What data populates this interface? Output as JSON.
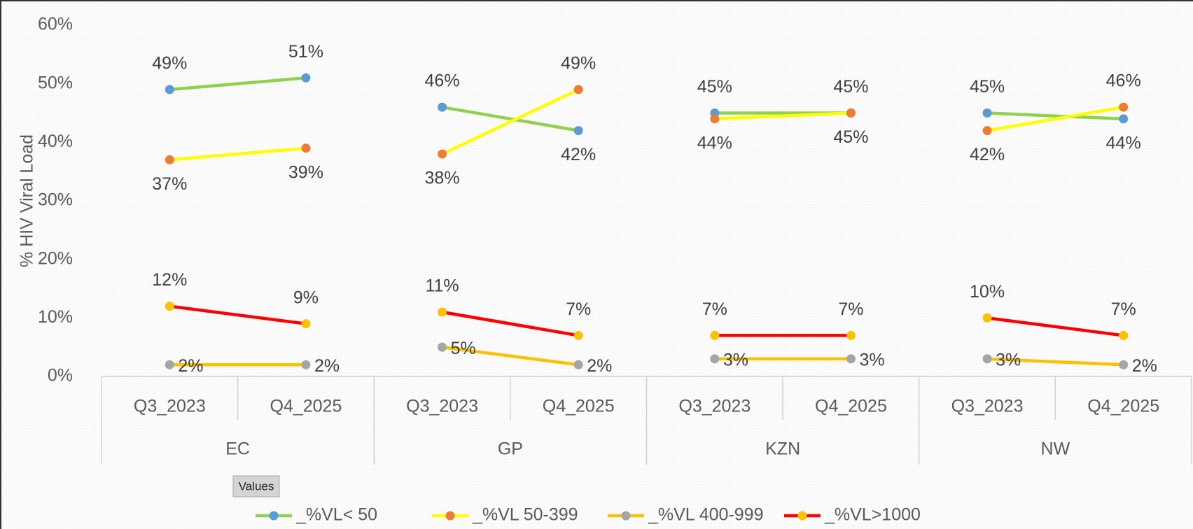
{
  "chart_data": {
    "type": "line",
    "ylabel": "% HIV Viral Load",
    "categories": [
      "Q3_2023",
      "Q4_2025",
      "Q3_2023",
      "Q4_2025",
      "Q3_2023",
      "Q4_2025",
      "Q3_2023",
      "Q4_2025"
    ],
    "groups": [
      "EC",
      "GP",
      "KZN",
      "NW"
    ],
    "field_button": "Values",
    "ylim": [
      0,
      60
    ],
    "yticks": [
      {
        "value": 0,
        "label": "0%"
      },
      {
        "value": 10,
        "label": "10%"
      },
      {
        "value": 20,
        "label": "20%"
      },
      {
        "value": 30,
        "label": "30%"
      },
      {
        "value": 40,
        "label": "40%"
      },
      {
        "value": 50,
        "label": "50%"
      },
      {
        "value": 60,
        "label": "60%"
      }
    ],
    "legend": "bottom",
    "series": [
      {
        "name": "_%VL< 50",
        "color": "#92d050",
        "marker_color": "#5b9bd5",
        "values": [
          49,
          51,
          46,
          42,
          45,
          45,
          45,
          44
        ],
        "value_labels": [
          "49%",
          "51%",
          "46%",
          "42%",
          "45%",
          "45%",
          "45%",
          "44%"
        ]
      },
      {
        "name": "_%VL 50-399",
        "color": "#ffff00",
        "marker_color": "#ed7d31",
        "values": [
          37,
          39,
          38,
          49,
          44,
          45,
          42,
          46
        ],
        "value_labels": [
          "37%",
          "39%",
          "38%",
          "49%",
          "44%",
          "45%",
          "42%",
          "46%"
        ]
      },
      {
        "name": "_%VL 400-999",
        "color": "#ffc000",
        "marker_color": "#a5a5a5",
        "values": [
          2,
          2,
          5,
          2,
          3,
          3,
          3,
          2
        ],
        "value_labels": [
          "2%",
          "2%",
          "5%",
          "2%",
          "3%",
          "3%",
          "3%",
          "2%"
        ]
      },
      {
        "name": "_%VL>1000",
        "color": "#ff0000",
        "marker_color": "#ffc000",
        "values": [
          12,
          9,
          11,
          7,
          7,
          7,
          10,
          7
        ],
        "value_labels": [
          "12%",
          "9%",
          "11%",
          "7%",
          "7%",
          "7%",
          "10%",
          "7%"
        ]
      }
    ]
  }
}
